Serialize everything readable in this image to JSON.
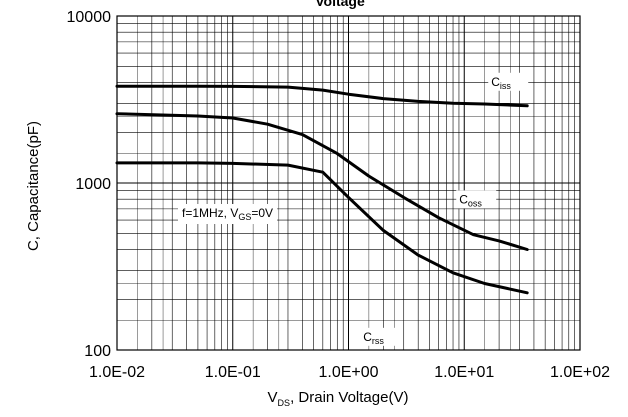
{
  "chart_data": {
    "type": "line",
    "title": "Voltage",
    "xlabel": {
      "prefix": "V",
      "sub": "DS",
      "suffix": ", Drain Voltage(V)"
    },
    "ylabel": "C, Capacitance(pF)",
    "xscale": "log",
    "yscale": "log",
    "xlim": [
      0.01,
      100
    ],
    "ylim": [
      100,
      10000
    ],
    "grid": true,
    "x_ticks": [
      {
        "value": 0.01,
        "label": "1.0E-02"
      },
      {
        "value": 0.1,
        "label": "1.0E-01"
      },
      {
        "value": 1,
        "label": "1.0E+00"
      },
      {
        "value": 10,
        "label": "1.0E+01"
      },
      {
        "value": 100,
        "label": "1.0E+02"
      }
    ],
    "y_ticks": [
      {
        "value": 100,
        "label": "100"
      },
      {
        "value": 1000,
        "label": "1000"
      },
      {
        "value": 10000,
        "label": "10000"
      }
    ],
    "annotation": {
      "prefix": "f=1MHz,  V",
      "sub": "GS",
      "suffix": "=0V"
    },
    "series": [
      {
        "name": "Ciss",
        "label_main": "C",
        "label_sub": "iss",
        "x": [
          0.01,
          0.05,
          0.1,
          0.3,
          0.6,
          1,
          2,
          4,
          8,
          15,
          35
        ],
        "y": [
          3800,
          3800,
          3790,
          3750,
          3600,
          3400,
          3200,
          3080,
          3000,
          2970,
          2900
        ]
      },
      {
        "name": "Coss",
        "label_main": "C",
        "label_sub": "oss",
        "x": [
          0.01,
          0.05,
          0.1,
          0.2,
          0.4,
          0.8,
          1.5,
          3,
          6,
          12,
          20,
          35
        ],
        "y": [
          2600,
          2520,
          2450,
          2250,
          1950,
          1500,
          1100,
          820,
          620,
          490,
          450,
          400
        ]
      },
      {
        "name": "Crss",
        "label_main": "C",
        "label_sub": "rss",
        "x": [
          0.01,
          0.05,
          0.1,
          0.3,
          0.6,
          1,
          2,
          4,
          8,
          15,
          35
        ],
        "y": [
          1320,
          1320,
          1310,
          1280,
          1160,
          820,
          520,
          370,
          290,
          250,
          220
        ]
      }
    ]
  }
}
